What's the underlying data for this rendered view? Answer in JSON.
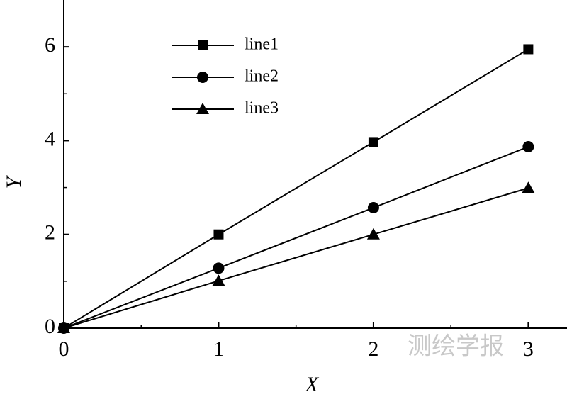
{
  "chart_data": {
    "type": "line",
    "x_label": "X",
    "y_label": "Y",
    "x": [
      0,
      1,
      2,
      3
    ],
    "series": [
      {
        "name": "line1",
        "color": "#000000",
        "marker": "square",
        "values": [
          0,
          2,
          3.97,
          5.95
        ]
      },
      {
        "name": "line2",
        "color": "#000000",
        "marker": "circle",
        "values": [
          0,
          1.28,
          2.57,
          3.87
        ]
      },
      {
        "name": "line3",
        "color": "#000000",
        "marker": "triangle",
        "values": [
          0,
          1.01,
          2,
          2.99
        ]
      }
    ],
    "xlim": [
      0,
      3.25
    ],
    "ylim": [
      0,
      7
    ],
    "xticks": [
      0,
      1,
      2,
      3
    ],
    "yticks": [
      0,
      2,
      4,
      6
    ],
    "xticks_minor": [
      0.5,
      1.5,
      2.5
    ],
    "yticks_minor": [
      1,
      3,
      5
    ],
    "grid": false,
    "legend": "upper left",
    "watermark": "测绘学报"
  }
}
